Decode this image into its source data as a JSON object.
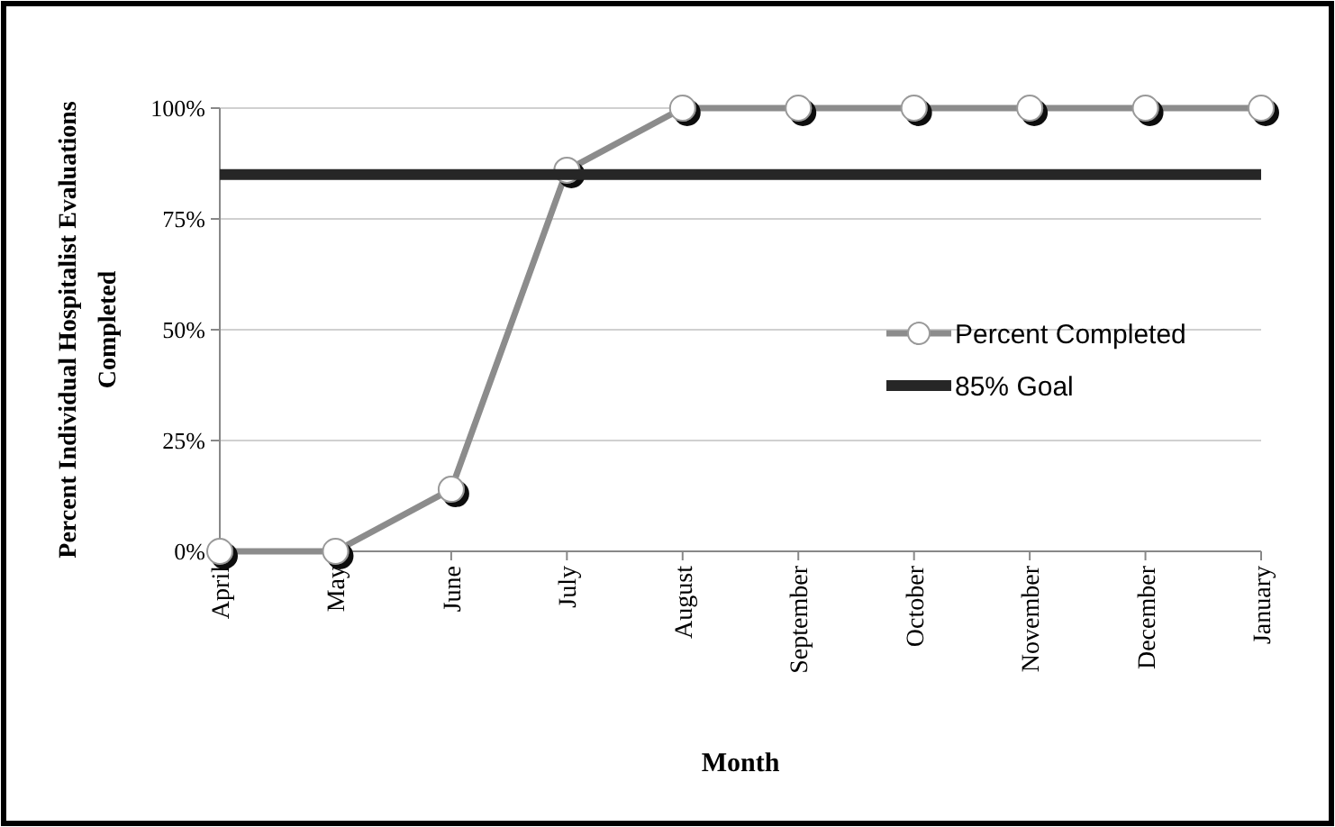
{
  "chart_data": {
    "type": "line",
    "xlabel": "Month",
    "ylabel": "Percent Individual Hospitalist Evaluations\nCompleted",
    "categories": [
      "April",
      "May",
      "June",
      "July",
      "August",
      "September",
      "October",
      "November",
      "December",
      "January"
    ],
    "series": [
      {
        "name": "Percent Completed",
        "color": "#8c8c8c",
        "marker": "circle",
        "values": [
          0,
          0,
          14,
          86,
          100,
          100,
          100,
          100,
          100,
          100
        ]
      },
      {
        "name": "85% Goal",
        "color": "#262626",
        "marker": "none",
        "values": [
          85,
          85,
          85,
          85,
          85,
          85,
          85,
          85,
          85,
          85
        ]
      }
    ],
    "ylim": [
      0,
      100
    ],
    "yticks": [
      {
        "value": 0,
        "label": "0%"
      },
      {
        "value": 25,
        "label": "25%"
      },
      {
        "value": 50,
        "label": "50%"
      },
      {
        "value": 75,
        "label": "75%"
      },
      {
        "value": 100,
        "label": "100%"
      }
    ],
    "grid": "y",
    "legend": "right"
  }
}
